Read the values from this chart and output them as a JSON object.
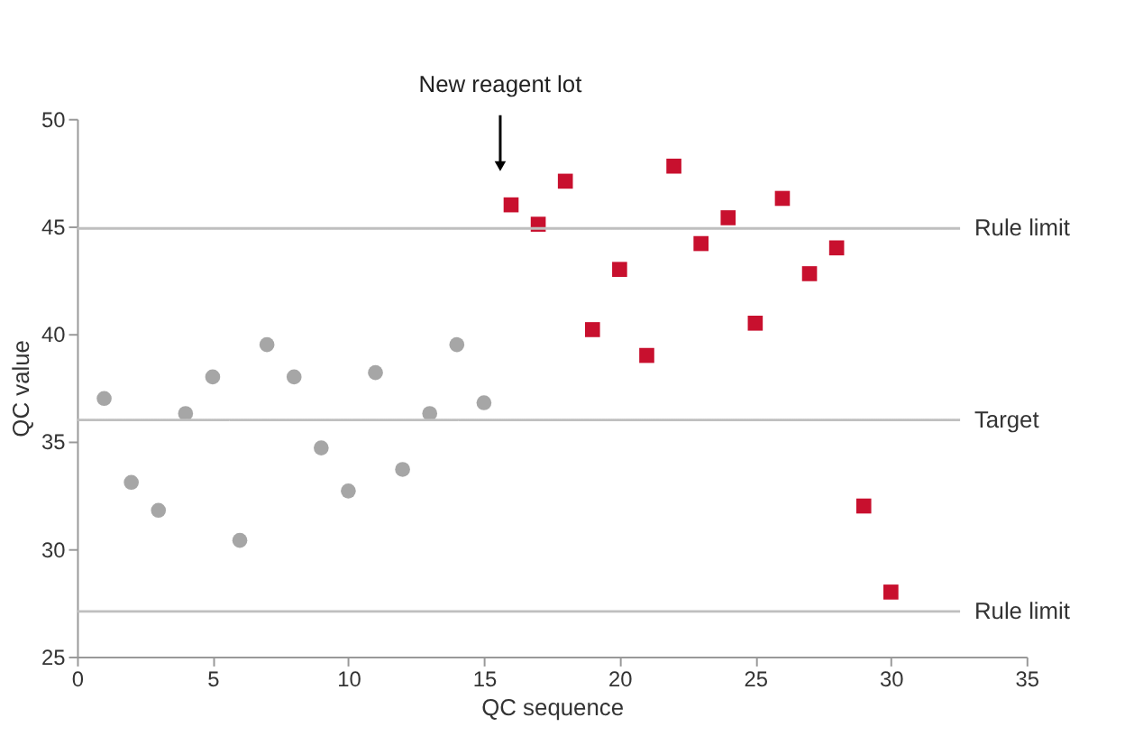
{
  "chart_data": {
    "type": "scatter",
    "xlabel": "QC sequence",
    "ylabel": "QC value",
    "xlim": [
      0,
      35
    ],
    "xticks": [
      0,
      5,
      10,
      15,
      20,
      25,
      30,
      35
    ],
    "ylim": [
      25,
      50
    ],
    "yticks": [
      25,
      30,
      35,
      40,
      45,
      50
    ],
    "grid": false,
    "series": [
      {
        "color": "#a6a6a6",
        "marker": "circle",
        "x": [
          1,
          2,
          3,
          4,
          5,
          6,
          7,
          8,
          9,
          10,
          11,
          12,
          13,
          14,
          15
        ],
        "values": [
          37.0,
          33.1,
          31.8,
          36.3,
          38.0,
          30.4,
          39.5,
          38.0,
          34.7,
          32.7,
          38.2,
          33.7,
          36.3,
          39.5,
          36.8
        ]
      },
      {
        "color": "#c8102e",
        "marker": "square",
        "x": [
          16,
          17,
          18,
          19,
          20,
          21,
          22,
          23,
          24,
          25,
          26,
          27,
          28,
          29,
          30
        ],
        "values": [
          46.0,
          45.1,
          47.1,
          40.2,
          43.0,
          39.0,
          47.8,
          44.2,
          45.4,
          40.5,
          46.3,
          42.8,
          44.0,
          32.0,
          28.0
        ]
      }
    ],
    "ref_lines": [
      {
        "axis": "y",
        "value": 44.9,
        "label": "Rule limit",
        "color": "#bfbfbf"
      },
      {
        "axis": "y",
        "value": 36.0,
        "label": "Target",
        "color": "#bfbfbf"
      },
      {
        "axis": "y",
        "value": 27.1,
        "label": "Rule limit",
        "color": "#bfbfbf"
      }
    ],
    "annotations": [
      {
        "text": "New reagent lot",
        "x": 15.6,
        "y": 47.8
      }
    ]
  }
}
